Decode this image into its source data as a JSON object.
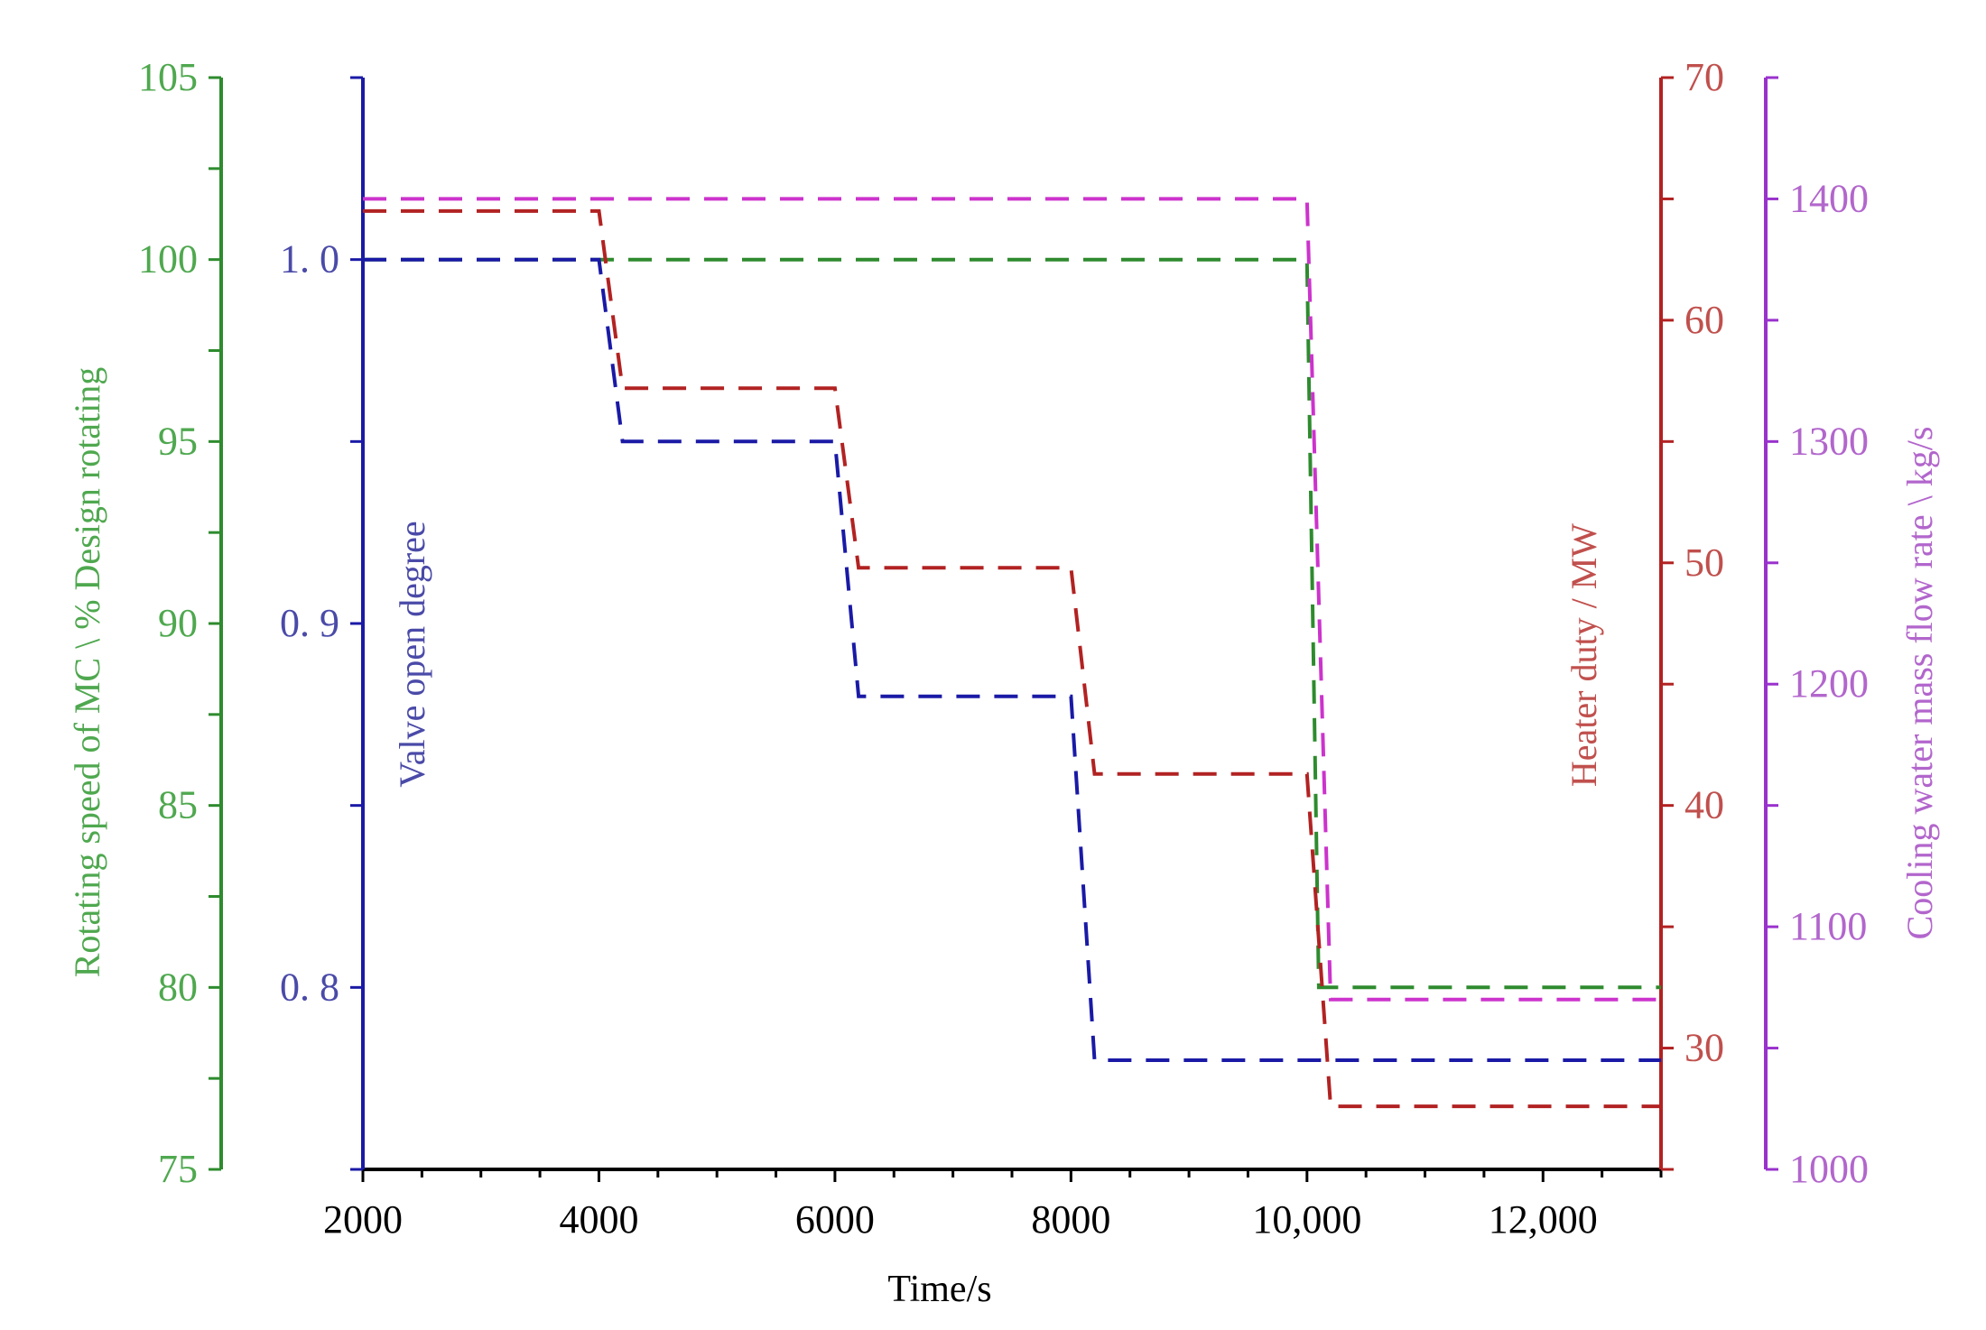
{
  "chart_data": {
    "type": "line",
    "x_axis": {
      "label": "Time/s",
      "ticks": [
        2000,
        4000,
        6000,
        8000,
        10000,
        12000
      ],
      "tick_labels": [
        "2000",
        "4000",
        "6000",
        "8000",
        "10,000",
        "12,000"
      ],
      "range": [
        2000,
        13000
      ],
      "color": "#000000"
    },
    "y_axes": [
      {
        "id": "speed",
        "label": "Rotating speed of MC \\ % Design rotating",
        "range": [
          75,
          105
        ],
        "ticks": [
          75,
          80,
          85,
          90,
          95,
          100,
          105
        ],
        "tick_labels": [
          "75",
          "80",
          "85",
          "90",
          "95",
          "100",
          "105"
        ],
        "color": "#2e8b2e",
        "label_color": "#4fa84f"
      },
      {
        "id": "valve",
        "label": "Valve open degree",
        "range": [
          0.75,
          1.05
        ],
        "ticks": [
          0.8,
          0.9,
          1.0
        ],
        "tick_labels": [
          "0. 8",
          "0. 9",
          "1. 0"
        ],
        "color": "#1a1aa6",
        "label_color": "#4a4aa8"
      },
      {
        "id": "heater",
        "label": "Heater duty / MW",
        "range": [
          25,
          70
        ],
        "ticks": [
          30,
          40,
          50,
          60,
          70
        ],
        "tick_labels": [
          "30",
          "40",
          "50",
          "60",
          "70"
        ],
        "color": "#b22222",
        "label_color": "#c0504d"
      },
      {
        "id": "cooling",
        "label": "Cooling water mass flow rate \\ kg/s",
        "range": [
          1000,
          1450
        ],
        "ticks": [
          1000,
          1100,
          1200,
          1300,
          1400
        ],
        "tick_labels": [
          "1000",
          "1100",
          "1200",
          "1300",
          "1400"
        ],
        "color": "#9932cc",
        "label_color": "#b266cc"
      }
    ],
    "series": [
      {
        "axis": "speed",
        "color": "#2e8b2e",
        "dashed": true,
        "points": [
          [
            2000,
            100
          ],
          [
            10000,
            100
          ],
          [
            10100,
            80
          ],
          [
            13000,
            80
          ]
        ]
      },
      {
        "axis": "valve",
        "color": "#1a1aa6",
        "dashed": true,
        "points": [
          [
            2000,
            1.0
          ],
          [
            4000,
            1.0
          ],
          [
            4200,
            0.95
          ],
          [
            6000,
            0.95
          ],
          [
            6200,
            0.88
          ],
          [
            8000,
            0.88
          ],
          [
            8200,
            0.78
          ],
          [
            13000,
            0.78
          ]
        ]
      },
      {
        "axis": "heater",
        "color": "#b22222",
        "dashed": true,
        "points": [
          [
            2000,
            64.5
          ],
          [
            4000,
            64.5
          ],
          [
            4200,
            57.2
          ],
          [
            6000,
            57.2
          ],
          [
            6200,
            49.8
          ],
          [
            8000,
            49.8
          ],
          [
            8200,
            41.3
          ],
          [
            10000,
            41.3
          ],
          [
            10200,
            27.6
          ],
          [
            13000,
            27.6
          ]
        ]
      },
      {
        "axis": "cooling",
        "color": "#cc33cc",
        "dashed": true,
        "points": [
          [
            2000,
            1400
          ],
          [
            10000,
            1400
          ],
          [
            10200,
            1070
          ],
          [
            13000,
            1070
          ]
        ]
      }
    ],
    "grid": false,
    "legend": "none"
  }
}
